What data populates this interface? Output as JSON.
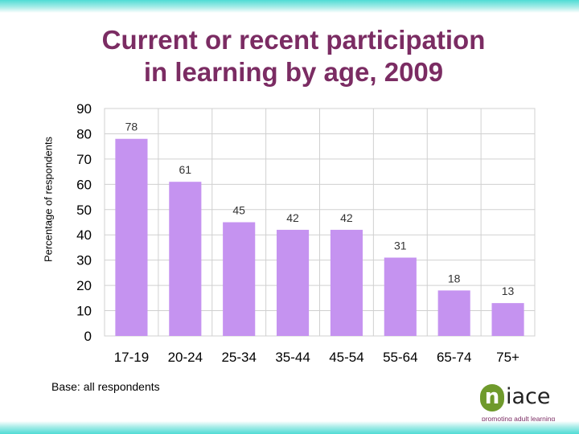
{
  "chart_data": {
    "type": "bar",
    "title": "Current or recent participation in learning by age, 2009",
    "title_lines": [
      "Current or recent participation",
      "in learning by age, 2009"
    ],
    "xlabel": "",
    "ylabel": "Percentage of respondents",
    "categories": [
      "17-19",
      "20-24",
      "25-34",
      "35-44",
      "45-54",
      "55-64",
      "65-74",
      "75+"
    ],
    "values": [
      78,
      61,
      45,
      42,
      42,
      31,
      18,
      13
    ],
    "yticks": [
      0,
      10,
      20,
      30,
      40,
      50,
      60,
      70,
      80,
      90
    ],
    "ylim": [
      0,
      90
    ],
    "grid": true,
    "data_labels": true,
    "legend": "none",
    "bar_color": "#c593f0"
  },
  "footer": {
    "base_note": "Base: all respondents"
  },
  "logo": {
    "initial": "n",
    "rest": "iace",
    "tagline": "promoting adult learning",
    "accent_color": "#6f9a2c",
    "text_color": "#7b2c63"
  },
  "theme": {
    "title_color": "#7b2c63",
    "band_color": "#4fdcd5"
  }
}
